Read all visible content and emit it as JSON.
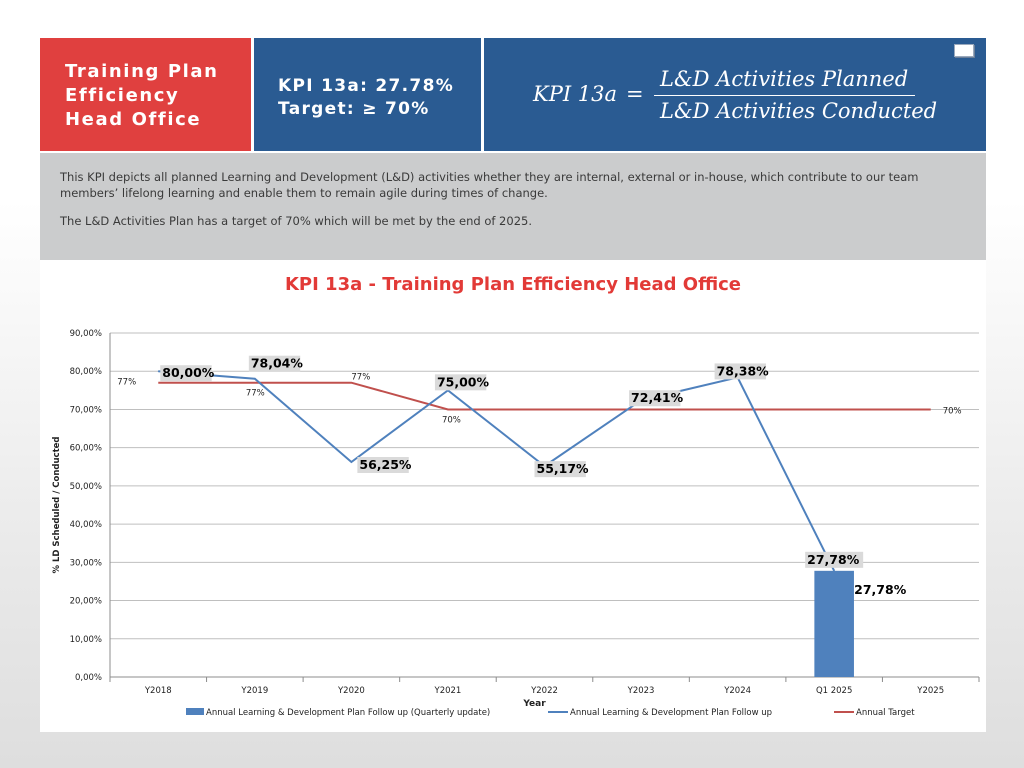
{
  "header": {
    "title_lines": [
      "Training Plan",
      "Efficiency",
      "Head Office"
    ],
    "kpi_value": "KPI 13a: 27.78%",
    "kpi_target": "Target: ≥ 70%",
    "formula": {
      "lhs": "KPI  13a",
      "eq": "=",
      "numerator": "L&D Activities Planned",
      "denominator": "L&D Activities Conducted"
    },
    "note_icon": "comment-icon"
  },
  "description": {
    "paragraph1": "This KPI depicts all planned Learning and Development (L&D) activities whether they are internal, external or in-house, which contribute to our team members’ lifelong learning and enable them to remain agile during times of change.",
    "paragraph2": "The L&D Activities Plan has a target of 70% which will be met by the end of 2025."
  },
  "chart_data": {
    "type": "line",
    "title": "KPI 13a - Training Plan Efficiency Head Office",
    "xlabel": "Year",
    "ylabel": "% LD Scheduled / Conducted",
    "ylim": [
      0,
      90
    ],
    "ytick_step": 10,
    "ytick_labels": [
      "0,00%",
      "10,00%",
      "20,00%",
      "30,00%",
      "40,00%",
      "50,00%",
      "60,00%",
      "70,00%",
      "80,00%",
      "90,00%"
    ],
    "categories": [
      "Y2018",
      "Y2019",
      "Y2020",
      "Y2021",
      "Y2022",
      "Y2023",
      "Y2024",
      "Q1 2025",
      "Y2025"
    ],
    "grid": true,
    "legend_position": "bottom",
    "series": [
      {
        "name": "Annual Learning & Development Plan Follow up (Quarterly update)",
        "type": "bar",
        "color": "#4f81bd",
        "values": [
          null,
          null,
          null,
          null,
          null,
          null,
          null,
          27.78,
          null
        ],
        "labels": [
          null,
          null,
          null,
          null,
          null,
          null,
          null,
          "27,78%",
          null
        ]
      },
      {
        "name": "Annual Learning & Development Plan Follow up",
        "type": "line",
        "color": "#4f81bd",
        "values": [
          80.0,
          78.04,
          56.25,
          75.0,
          55.17,
          72.41,
          78.38,
          27.78,
          null
        ],
        "labels": [
          "80,00%",
          "78,04%",
          "56,25%",
          "75,00%",
          "55,17%",
          "72,41%",
          "78,38%",
          "27,78%",
          null
        ]
      },
      {
        "name": "Annual Target",
        "type": "line",
        "color": "#c0504d",
        "values": [
          77,
          77,
          77,
          70,
          70,
          70,
          70,
          70,
          70
        ],
        "labels": [
          "77%",
          "77%",
          "77%",
          "70%",
          null,
          null,
          null,
          null,
          "70%"
        ]
      }
    ]
  }
}
